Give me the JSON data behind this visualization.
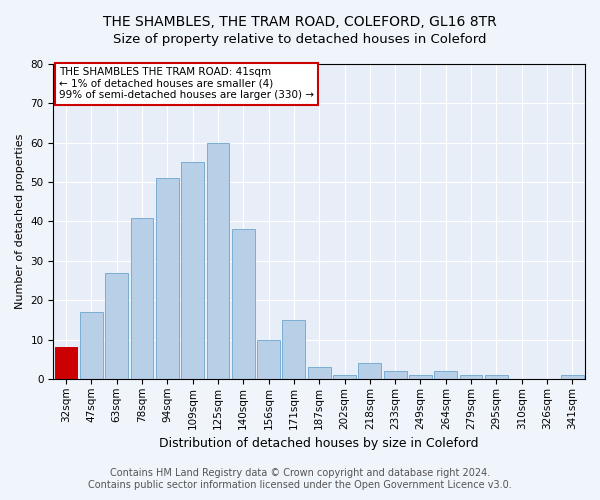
{
  "title": "THE SHAMBLES, THE TRAM ROAD, COLEFORD, GL16 8TR",
  "subtitle": "Size of property relative to detached houses in Coleford",
  "xlabel": "Distribution of detached houses by size in Coleford",
  "ylabel": "Number of detached properties",
  "categories": [
    "32sqm",
    "47sqm",
    "63sqm",
    "78sqm",
    "94sqm",
    "109sqm",
    "125sqm",
    "140sqm",
    "156sqm",
    "171sqm",
    "187sqm",
    "202sqm",
    "218sqm",
    "233sqm",
    "249sqm",
    "264sqm",
    "279sqm",
    "295sqm",
    "310sqm",
    "326sqm",
    "341sqm"
  ],
  "values": [
    8,
    17,
    27,
    41,
    51,
    55,
    60,
    38,
    10,
    15,
    3,
    1,
    4,
    2,
    1,
    2,
    1,
    1,
    0,
    0,
    1
  ],
  "highlight_index": 0,
  "highlight_color": "#cc0000",
  "bar_color": "#b8cfe8",
  "bar_edge_color": "#7aadd4",
  "ylim": [
    0,
    80
  ],
  "yticks": [
    0,
    10,
    20,
    30,
    40,
    50,
    60,
    70,
    80
  ],
  "annotation_box_text": "THE SHAMBLES THE TRAM ROAD: 41sqm\n← 1% of detached houses are smaller (4)\n99% of semi-detached houses are larger (330) →",
  "footer_line1": "Contains HM Land Registry data © Crown copyright and database right 2024.",
  "footer_line2": "Contains public sector information licensed under the Open Government Licence v3.0.",
  "title_fontsize": 10,
  "xlabel_fontsize": 9,
  "ylabel_fontsize": 8,
  "tick_fontsize": 7.5,
  "annotation_fontsize": 7.5,
  "footer_fontsize": 7,
  "bg_color": "#f0f4fb",
  "plot_bg_color": "#e8eef8"
}
